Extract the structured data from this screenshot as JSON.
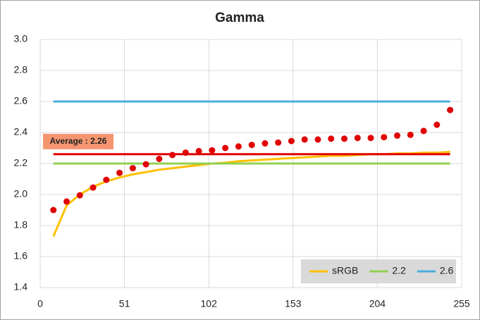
{
  "chart_data": {
    "type": "line",
    "title": "Gamma",
    "x": [
      8,
      16,
      24,
      32,
      40,
      48,
      56,
      64,
      72,
      80,
      88,
      96,
      104,
      112,
      120,
      128,
      136,
      144,
      152,
      160,
      168,
      176,
      184,
      192,
      200,
      208,
      216,
      224,
      232,
      240,
      248
    ],
    "series": [
      {
        "name": "sRGB",
        "color": "#ffc000",
        "style": "line",
        "values": [
          1.73,
          1.93,
          2.0,
          2.05,
          2.085,
          2.11,
          2.13,
          2.145,
          2.16,
          2.17,
          2.18,
          2.19,
          2.2,
          2.205,
          2.215,
          2.22,
          2.225,
          2.23,
          2.235,
          2.24,
          2.245,
          2.25,
          2.25,
          2.255,
          2.26,
          2.26,
          2.265,
          2.265,
          2.27,
          2.27,
          2.275
        ]
      },
      {
        "name": "2.2",
        "color": "#92d050",
        "style": "line",
        "values": [
          2.2,
          2.2,
          2.2,
          2.2,
          2.2,
          2.2,
          2.2,
          2.2,
          2.2,
          2.2,
          2.2,
          2.2,
          2.2,
          2.2,
          2.2,
          2.2,
          2.2,
          2.2,
          2.2,
          2.2,
          2.2,
          2.2,
          2.2,
          2.2,
          2.2,
          2.2,
          2.2,
          2.2,
          2.2,
          2.2,
          2.2
        ]
      },
      {
        "name": "2.6",
        "color": "#4bacdc",
        "style": "line",
        "values": [
          2.6,
          2.6,
          2.6,
          2.6,
          2.6,
          2.6,
          2.6,
          2.6,
          2.6,
          2.6,
          2.6,
          2.6,
          2.6,
          2.6,
          2.6,
          2.6,
          2.6,
          2.6,
          2.6,
          2.6,
          2.6,
          2.6,
          2.6,
          2.6,
          2.6,
          2.6,
          2.6,
          2.6,
          2.6,
          2.6,
          2.6
        ]
      },
      {
        "color": "#e00000",
        "style": "line",
        "values": [
          2.26,
          2.26,
          2.26,
          2.26,
          2.26,
          2.26,
          2.26,
          2.26,
          2.26,
          2.26,
          2.26,
          2.26,
          2.26,
          2.26,
          2.26,
          2.26,
          2.26,
          2.26,
          2.26,
          2.26,
          2.26,
          2.26,
          2.26,
          2.26,
          2.26,
          2.26,
          2.26,
          2.26,
          2.26,
          2.26,
          2.26
        ]
      },
      {
        "color": "#e00000",
        "style": "dot",
        "values": [
          1.9,
          1.955,
          1.995,
          2.045,
          2.095,
          2.14,
          2.17,
          2.195,
          2.23,
          2.255,
          2.27,
          2.28,
          2.285,
          2.3,
          2.31,
          2.32,
          2.33,
          2.335,
          2.345,
          2.355,
          2.355,
          2.36,
          2.36,
          2.365,
          2.365,
          2.37,
          2.38,
          2.385,
          2.41,
          2.45,
          2.545
        ]
      }
    ],
    "annotation": "Average : 2.26",
    "xlim": [
      0,
      255
    ],
    "xticks": [
      0,
      51,
      102,
      153,
      204,
      255
    ],
    "ylim": [
      1.4,
      3.0
    ],
    "yticks": [
      1.4,
      1.6,
      1.8,
      {
        "value": 2,
        "label": "2.0"
      },
      2.2,
      2.4,
      2.6,
      2.8,
      {
        "value": 3,
        "label": "3.0"
      }
    ],
    "grid": true,
    "legend": "bottom-right"
  }
}
